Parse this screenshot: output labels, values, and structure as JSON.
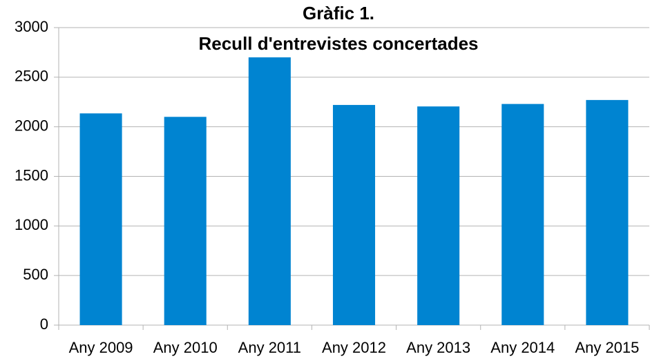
{
  "chart_data": {
    "type": "bar",
    "title": [
      "Gràfic 1.",
      "Recull d'entrevistes concertades"
    ],
    "categories": [
      "Any 2009",
      "Any 2010",
      "Any 2011",
      "Any 2012",
      "Any 2013",
      "Any 2014",
      "Any 2015"
    ],
    "values": [
      2135,
      2100,
      2700,
      2220,
      2205,
      2230,
      2270
    ],
    "color": "#0084d1",
    "ylim": [
      0,
      3000
    ],
    "yticks": [
      0,
      500,
      1000,
      1500,
      2000,
      2500,
      3000
    ],
    "grid": true
  }
}
